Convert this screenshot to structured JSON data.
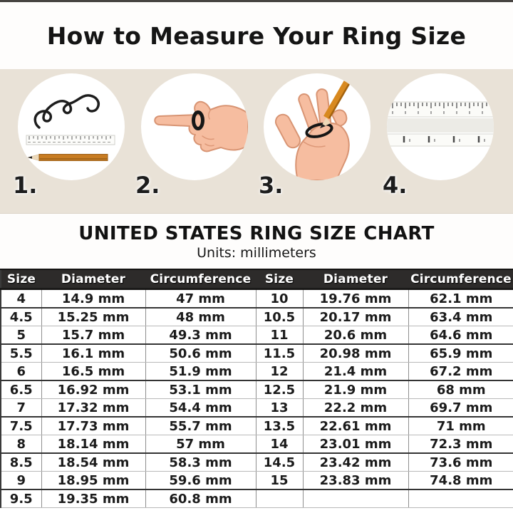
{
  "page": {
    "title": "How to Measure Your Ring Size"
  },
  "steps": [
    {
      "number": "1.",
      "icon": "string-ruler-pencil-icon"
    },
    {
      "number": "2.",
      "icon": "hand-pointing-with-ring-icon"
    },
    {
      "number": "3.",
      "icon": "hand-pencil-marking-string-icon"
    },
    {
      "number": "4.",
      "icon": "measuring-rulers-icon"
    }
  ],
  "chart_data": {
    "type": "table",
    "title": "UNITED STATES RING SIZE CHART",
    "subtitle": "Units: millimeters",
    "headers": [
      "Size",
      "Diameter",
      "Circumference",
      "Size",
      "Diameter",
      "Circumference"
    ],
    "rows": [
      [
        "4",
        "14.9 mm",
        "47 mm",
        "10",
        "19.76 mm",
        "62.1 mm"
      ],
      [
        "4.5",
        "15.25 mm",
        "48 mm",
        "10.5",
        "20.17 mm",
        "63.4 mm"
      ],
      [
        "5",
        "15.7 mm",
        "49.3 mm",
        "11",
        "20.6 mm",
        "64.6 mm"
      ],
      [
        "5.5",
        "16.1 mm",
        "50.6 mm",
        "11.5",
        "20.98 mm",
        "65.9 mm"
      ],
      [
        "6",
        "16.5 mm",
        "51.9 mm",
        "12",
        "21.4 mm",
        "67.2 mm"
      ],
      [
        "6.5",
        "16.92 mm",
        "53.1 mm",
        "12.5",
        "21.9 mm",
        "68 mm"
      ],
      [
        "7",
        "17.32 mm",
        "54.4 mm",
        "13",
        "22.2 mm",
        "69.7 mm"
      ],
      [
        "7.5",
        "17.73 mm",
        "55.7 mm",
        "13.5",
        "22.61 mm",
        "71 mm"
      ],
      [
        "8",
        "18.14 mm",
        "57 mm",
        "14",
        "23.01 mm",
        "72.3 mm"
      ],
      [
        "8.5",
        "18.54 mm",
        "58.3 mm",
        "14.5",
        "23.42 mm",
        "73.6 mm"
      ],
      [
        "9",
        "18.95 mm",
        "59.6 mm",
        "15",
        "23.83 mm",
        "74.8 mm"
      ],
      [
        "9.5",
        "19.35 mm",
        "60.8 mm",
        "",
        "",
        ""
      ]
    ]
  },
  "colors": {
    "band_background": "#e9e2d7",
    "header_bar": "#2d2b2a",
    "pencil_orange": "#c87c22",
    "skin_tone": "#f6bda0",
    "string_black": "#1d1d1d"
  }
}
